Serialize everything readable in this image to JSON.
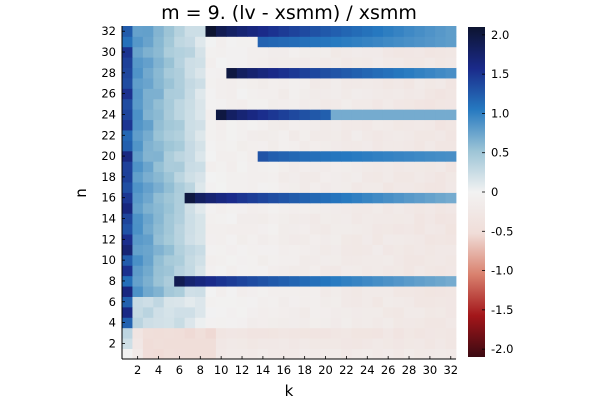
{
  "chart_data": {
    "type": "heatmap",
    "title": "m = 9. (lv - xsmm) / xsmm",
    "xlabel": "k",
    "ylabel": "n",
    "x_range": [
      1,
      32
    ],
    "y_range": [
      1,
      32
    ],
    "x_ticks": [
      "2",
      "4",
      "6",
      "8",
      "10",
      "12",
      "14",
      "16",
      "18",
      "20",
      "22",
      "24",
      "26",
      "28",
      "30",
      "32"
    ],
    "y_ticks": [
      "2",
      "4",
      "6",
      "8",
      "10",
      "12",
      "14",
      "16",
      "18",
      "20",
      "22",
      "24",
      "26",
      "28",
      "30",
      "32"
    ],
    "colorbar": {
      "range": [
        -2.1,
        2.1
      ],
      "ticks": [
        "-2.0",
        "-1.5",
        "-1.0",
        "-0.5",
        "0",
        "0.5",
        "1.0",
        "1.5",
        "2.0"
      ],
      "colors": [
        "#3b0a12",
        "#a3161a",
        "#d9816e",
        "#f0ddd8",
        "#f2f2f2",
        "#9cc4d6",
        "#2679c0",
        "#1a2a8a",
        "#0d1430"
      ]
    },
    "cell_value_ranges": {
      "k1_column": [
        0.2,
        1.7
      ],
      "k2_to_k8_block": [
        0.1,
        0.9
      ],
      "interior_background": [
        -0.4,
        0.1
      ],
      "bottom_rows_n1_to_n3": [
        -0.55,
        -0.2
      ]
    },
    "bright_rows": [
      {
        "n": 8,
        "starts_at_k": 6,
        "value_at_start": 1.9,
        "value_far_right": 0.7
      },
      {
        "n": 16,
        "starts_at_k": 7,
        "value_at_start": 2.0,
        "value_far_right": 0.7
      },
      {
        "n": 20,
        "starts_at_k": 14,
        "value_at_start": 1.3,
        "value_far_right": 0.9
      },
      {
        "n": 24,
        "starts_at_k": 10,
        "value_at_start": 2.0,
        "value_far_right": 0.75,
        "drop_at_k": 21
      },
      {
        "n": 28,
        "starts_at_k": 11,
        "value_at_start": 2.0,
        "value_far_right": 0.9
      },
      {
        "n": 32,
        "starts_at_k": 9,
        "value_at_start": 2.1,
        "value_far_right": 0.8,
        "n31_also_from_k": 14
      }
    ]
  }
}
